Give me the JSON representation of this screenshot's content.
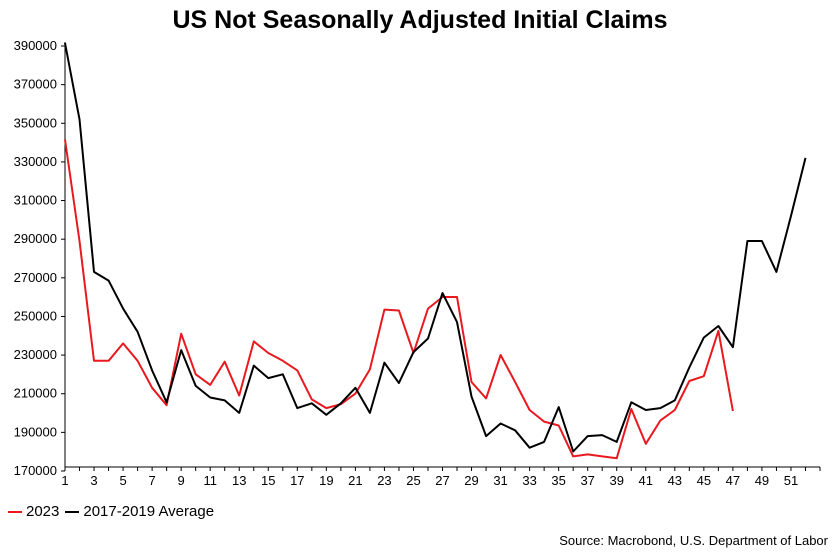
{
  "chart_data": {
    "type": "line",
    "title": "US Not Seasonally Adjusted Initial Claims",
    "source": "Source: Macrobond, U.S. Department of Labor",
    "xlabel": "",
    "ylabel": "",
    "xlim": [
      1,
      53
    ],
    "ylim": [
      170000,
      390000
    ],
    "x_ticks": [
      1,
      3,
      5,
      7,
      9,
      11,
      13,
      15,
      17,
      19,
      21,
      23,
      25,
      27,
      29,
      31,
      33,
      35,
      37,
      39,
      41,
      43,
      45,
      47,
      49,
      51
    ],
    "y_ticks": [
      170000,
      190000,
      210000,
      230000,
      250000,
      270000,
      290000,
      310000,
      330000,
      350000,
      370000,
      390000
    ],
    "grid": false,
    "legend_position": "bottom-left",
    "series": [
      {
        "name": "2023",
        "color": "#e8191f",
        "x": [
          1,
          2,
          3,
          4,
          5,
          6,
          7,
          8,
          9,
          10,
          11,
          12,
          13,
          14,
          15,
          16,
          17,
          18,
          19,
          20,
          21,
          22,
          23,
          24,
          25,
          26,
          27,
          28,
          29,
          30,
          31,
          32,
          33,
          34,
          35,
          36,
          37,
          38,
          39,
          40,
          41,
          42,
          43,
          44,
          45,
          46,
          47
        ],
        "values": [
          339500,
          287000,
          225000,
          225000,
          234000,
          225000,
          211000,
          202000,
          239000,
          218000,
          212500,
          224500,
          207000,
          235000,
          229000,
          225000,
          220000,
          205000,
          200500,
          202500,
          208000,
          220500,
          251500,
          251000,
          229000,
          252000,
          258000,
          258000,
          214000,
          205500,
          228000,
          214000,
          199500,
          193500,
          191500,
          175500,
          176500,
          175500,
          174500,
          200000,
          182000,
          194000,
          199500,
          214500,
          217000,
          240500,
          199000
        ]
      },
      {
        "name": "2017-2019 Average",
        "color": "#000000",
        "x": [
          1,
          2,
          3,
          4,
          5,
          6,
          7,
          8,
          9,
          10,
          11,
          12,
          13,
          14,
          15,
          16,
          17,
          18,
          19,
          20,
          21,
          22,
          23,
          24,
          25,
          26,
          27,
          28,
          29,
          30,
          31,
          32,
          33,
          34,
          35,
          36,
          37,
          38,
          39,
          40,
          41,
          42,
          43,
          44,
          45,
          46,
          47,
          48,
          49,
          50,
          51,
          52
        ],
        "values": [
          389500,
          350000,
          271000,
          266500,
          252000,
          240000,
          220000,
          203500,
          230500,
          212000,
          206000,
          204500,
          198000,
          222500,
          216000,
          218000,
          200500,
          203000,
          197000,
          203000,
          211000,
          198000,
          224000,
          213500,
          229500,
          236500,
          260000,
          245000,
          206500,
          186000,
          192500,
          189000,
          180000,
          183000,
          201000,
          178000,
          186000,
          186500,
          183000,
          203500,
          199500,
          200500,
          204500,
          221500,
          237000,
          243000,
          232000,
          287000,
          287000,
          271000,
          300000,
          330000
        ]
      }
    ]
  }
}
